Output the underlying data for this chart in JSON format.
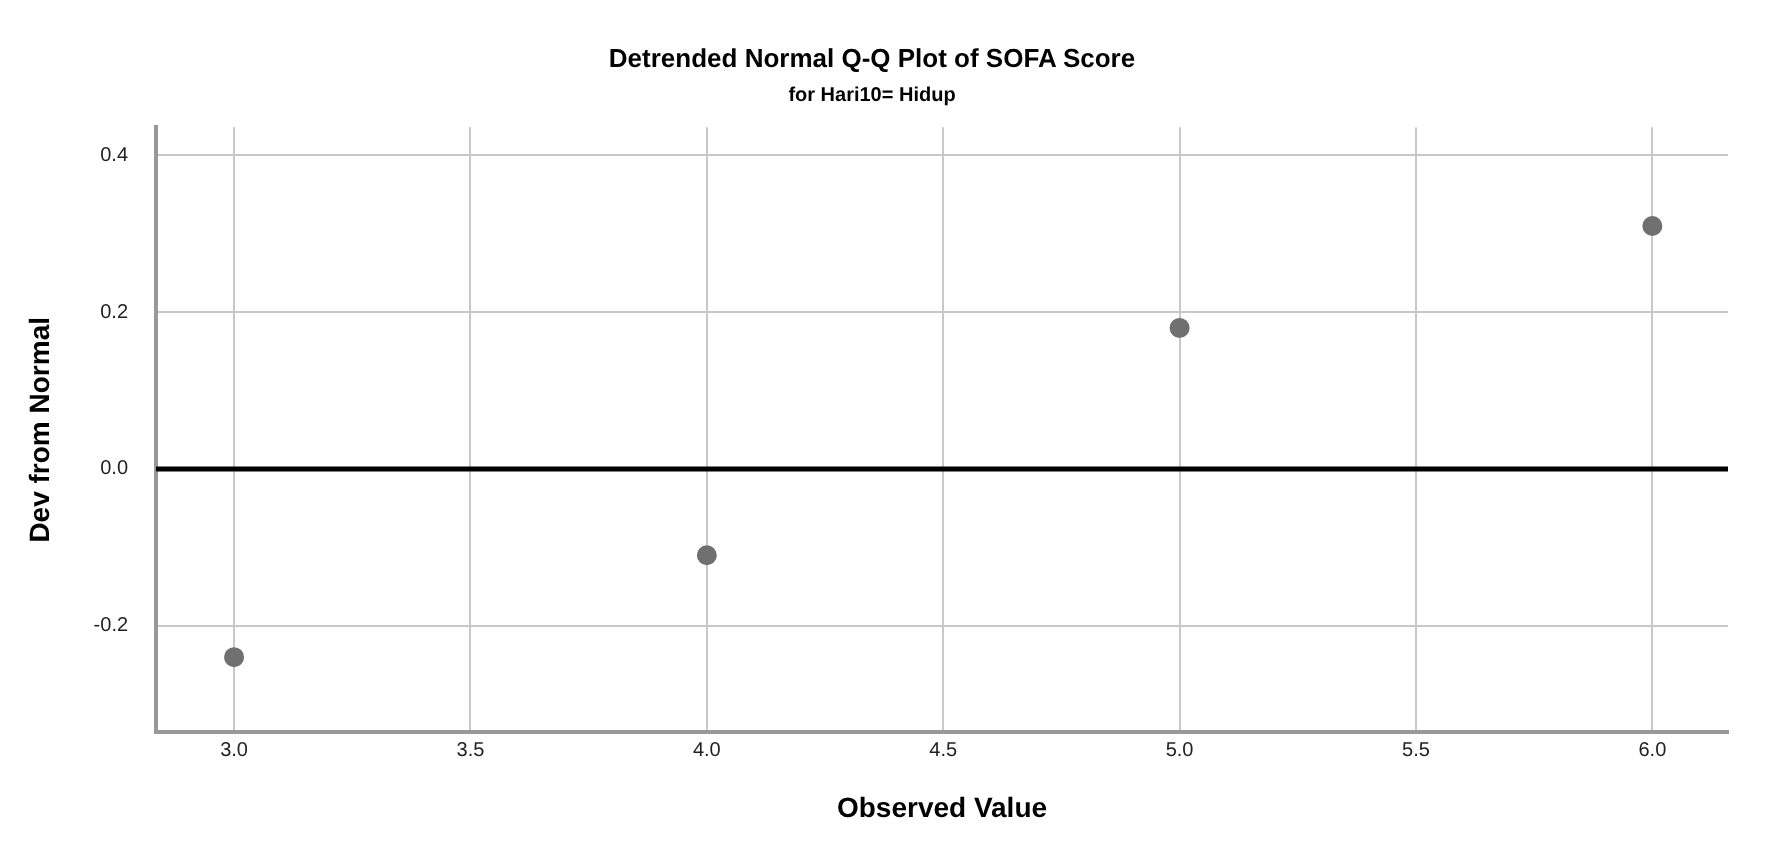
{
  "chart_data": {
    "type": "scatter",
    "title": "Detrended Normal Q-Q Plot of SOFA Score",
    "subtitle": "for Hari10= Hidup",
    "xlabel": "Observed Value",
    "ylabel": "Dev from Normal",
    "x": [
      3.0,
      4.0,
      5.0,
      6.0
    ],
    "series": [
      {
        "color": "#707070",
        "values": [
          -0.24,
          -0.11,
          0.18,
          0.31
        ]
      }
    ],
    "xlim": [
      2.835,
      6.16
    ],
    "xticks": [
      {
        "value": 3,
        "label": "3.0"
      },
      {
        "value": 3.5,
        "label": "3.5"
      },
      {
        "value": 4,
        "label": "4.0"
      },
      {
        "value": 4.5,
        "label": "4.5"
      },
      {
        "value": 5,
        "label": "5.0"
      },
      {
        "value": 5.5,
        "label": "5.5"
      },
      {
        "value": 6,
        "label": "6.0"
      }
    ],
    "ylim": [
      -0.336,
      0.436
    ],
    "yticks": [
      {
        "value": -0.2,
        "label": "-0.2"
      },
      {
        "value": 0,
        "label": "0.0"
      },
      {
        "value": 0.2,
        "label": "0.2"
      },
      {
        "value": 0.4,
        "label": "0.4"
      }
    ],
    "ref_lines": [
      {
        "axis": "y",
        "value": 0,
        "color": "#000000"
      }
    ],
    "grid": true,
    "marker": "circle",
    "legend": false
  }
}
